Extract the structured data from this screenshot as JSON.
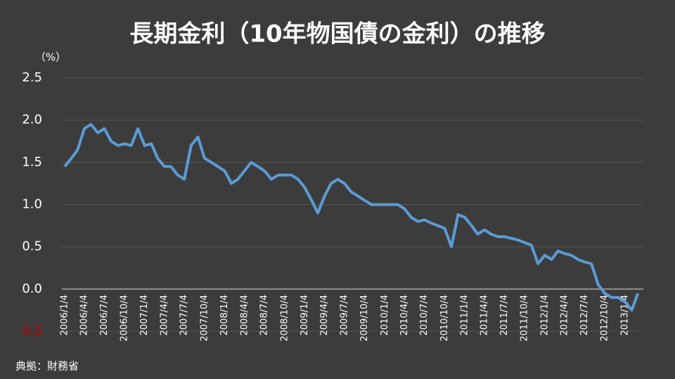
{
  "chart_data": {
    "type": "line",
    "title": "長期金利（10年物国債の金利）の推移",
    "y_axis_label": "（%）",
    "source": "典拠：財務省",
    "x": [
      "2006/1/4",
      "2006/2/4",
      "2006/3/4",
      "2006/4/4",
      "2006/5/4",
      "2006/6/4",
      "2006/7/4",
      "2006/8/4",
      "2006/9/4",
      "2006/10/4",
      "2006/11/4",
      "2006/12/4",
      "2007/1/4",
      "2007/2/4",
      "2007/3/4",
      "2007/4/4",
      "2007/5/4",
      "2007/6/4",
      "2007/7/4",
      "2007/8/4",
      "2007/9/4",
      "2007/10/4",
      "2007/11/4",
      "2007/12/4",
      "2008/1/4",
      "2008/2/4",
      "2008/3/4",
      "2008/4/4",
      "2008/5/4",
      "2008/6/4",
      "2008/7/4",
      "2008/8/4",
      "2008/9/4",
      "2008/10/4",
      "2008/11/4",
      "2008/12/4",
      "2009/1/4",
      "2009/2/4",
      "2009/3/4",
      "2009/4/4",
      "2009/5/4",
      "2009/6/4",
      "2009/7/4",
      "2009/8/4",
      "2009/9/4",
      "2009/10/4",
      "2009/11/4",
      "2009/12/4",
      "2010/1/4",
      "2010/2/4",
      "2010/3/4",
      "2010/4/4",
      "2010/5/4",
      "2010/6/4",
      "2010/7/4",
      "2010/8/4",
      "2010/9/4",
      "2010/10/4",
      "2010/11/4",
      "2010/12/4",
      "2011/1/4",
      "2011/2/4",
      "2011/3/4",
      "2011/4/4",
      "2011/5/4",
      "2011/6/4",
      "2011/7/4",
      "2011/8/4",
      "2011/9/4",
      "2011/10/4",
      "2011/11/4",
      "2011/12/4",
      "2012/1/4",
      "2012/2/4",
      "2012/3/4",
      "2012/4/4",
      "2012/5/4",
      "2012/6/4",
      "2012/7/4",
      "2012/8/4",
      "2012/9/4",
      "2012/10/4",
      "2012/11/4",
      "2012/12/4",
      "2013/1/4",
      "2013/2/4",
      "2013/3/4"
    ],
    "series": [
      {
        "color": "#5b9bd5",
        "values": [
          1.45,
          1.55,
          1.65,
          1.9,
          1.95,
          1.85,
          1.9,
          1.75,
          1.7,
          1.72,
          1.7,
          1.9,
          1.7,
          1.72,
          1.55,
          1.45,
          1.45,
          1.35,
          1.3,
          1.7,
          1.8,
          1.55,
          1.5,
          1.45,
          1.4,
          1.25,
          1.3,
          1.4,
          1.5,
          1.45,
          1.4,
          1.3,
          1.35,
          1.35,
          1.35,
          1.3,
          1.2,
          1.05,
          0.9,
          1.1,
          1.25,
          1.3,
          1.25,
          1.15,
          1.1,
          1.05,
          1.0,
          1.0,
          1.0,
          1.0,
          1.0,
          0.95,
          0.85,
          0.8,
          0.82,
          0.78,
          0.75,
          0.72,
          0.5,
          0.88,
          0.85,
          0.75,
          0.65,
          0.7,
          0.65,
          0.62,
          0.62,
          0.6,
          0.58,
          0.55,
          0.52,
          0.3,
          0.4,
          0.35,
          0.45,
          0.42,
          0.4,
          0.35,
          0.32,
          0.3,
          0.05,
          -0.05,
          -0.1,
          -0.1,
          -0.15,
          -0.25,
          -0.05
        ]
      }
    ],
    "xlim": [
      "2006/1/4",
      "2013/3/29"
    ],
    "xticks": [
      "2006/1/4",
      "2006/4/4",
      "2006/7/4",
      "2006/10/4",
      "2007/1/4",
      "2007/4/4",
      "2007/7/4",
      "2007/10/4",
      "2008/1/4",
      "2008/4/4",
      "2008/7/4",
      "2008/10/4",
      "2009/1/4",
      "2009/4/4",
      "2009/7/4",
      "2009/10/4",
      "2010/1/4",
      "2010/4/4",
      "2010/7/4",
      "2010/10/4",
      "2011/1/4",
      "2011/4/4",
      "2011/7/4",
      "2011/10/4",
      "2012/1/4",
      "2012/4/4",
      "2012/7/4",
      "2012/10/4",
      "2013/1/4"
    ],
    "ylim": [
      -0.5,
      2.5
    ],
    "yticks": [
      {
        "value": -0.5,
        "label": "-0.5"
      },
      {
        "value": 0,
        "label": "0.0"
      },
      {
        "value": 0.5,
        "label": "0.5"
      },
      {
        "value": 1,
        "label": "1.0"
      },
      {
        "value": 1.5,
        "label": "1.5"
      },
      {
        "value": 2,
        "label": "2.0"
      },
      {
        "value": 2.5,
        "label": "2.5"
      }
    ],
    "grid": true,
    "negative_tick_color": "#c00000"
  }
}
